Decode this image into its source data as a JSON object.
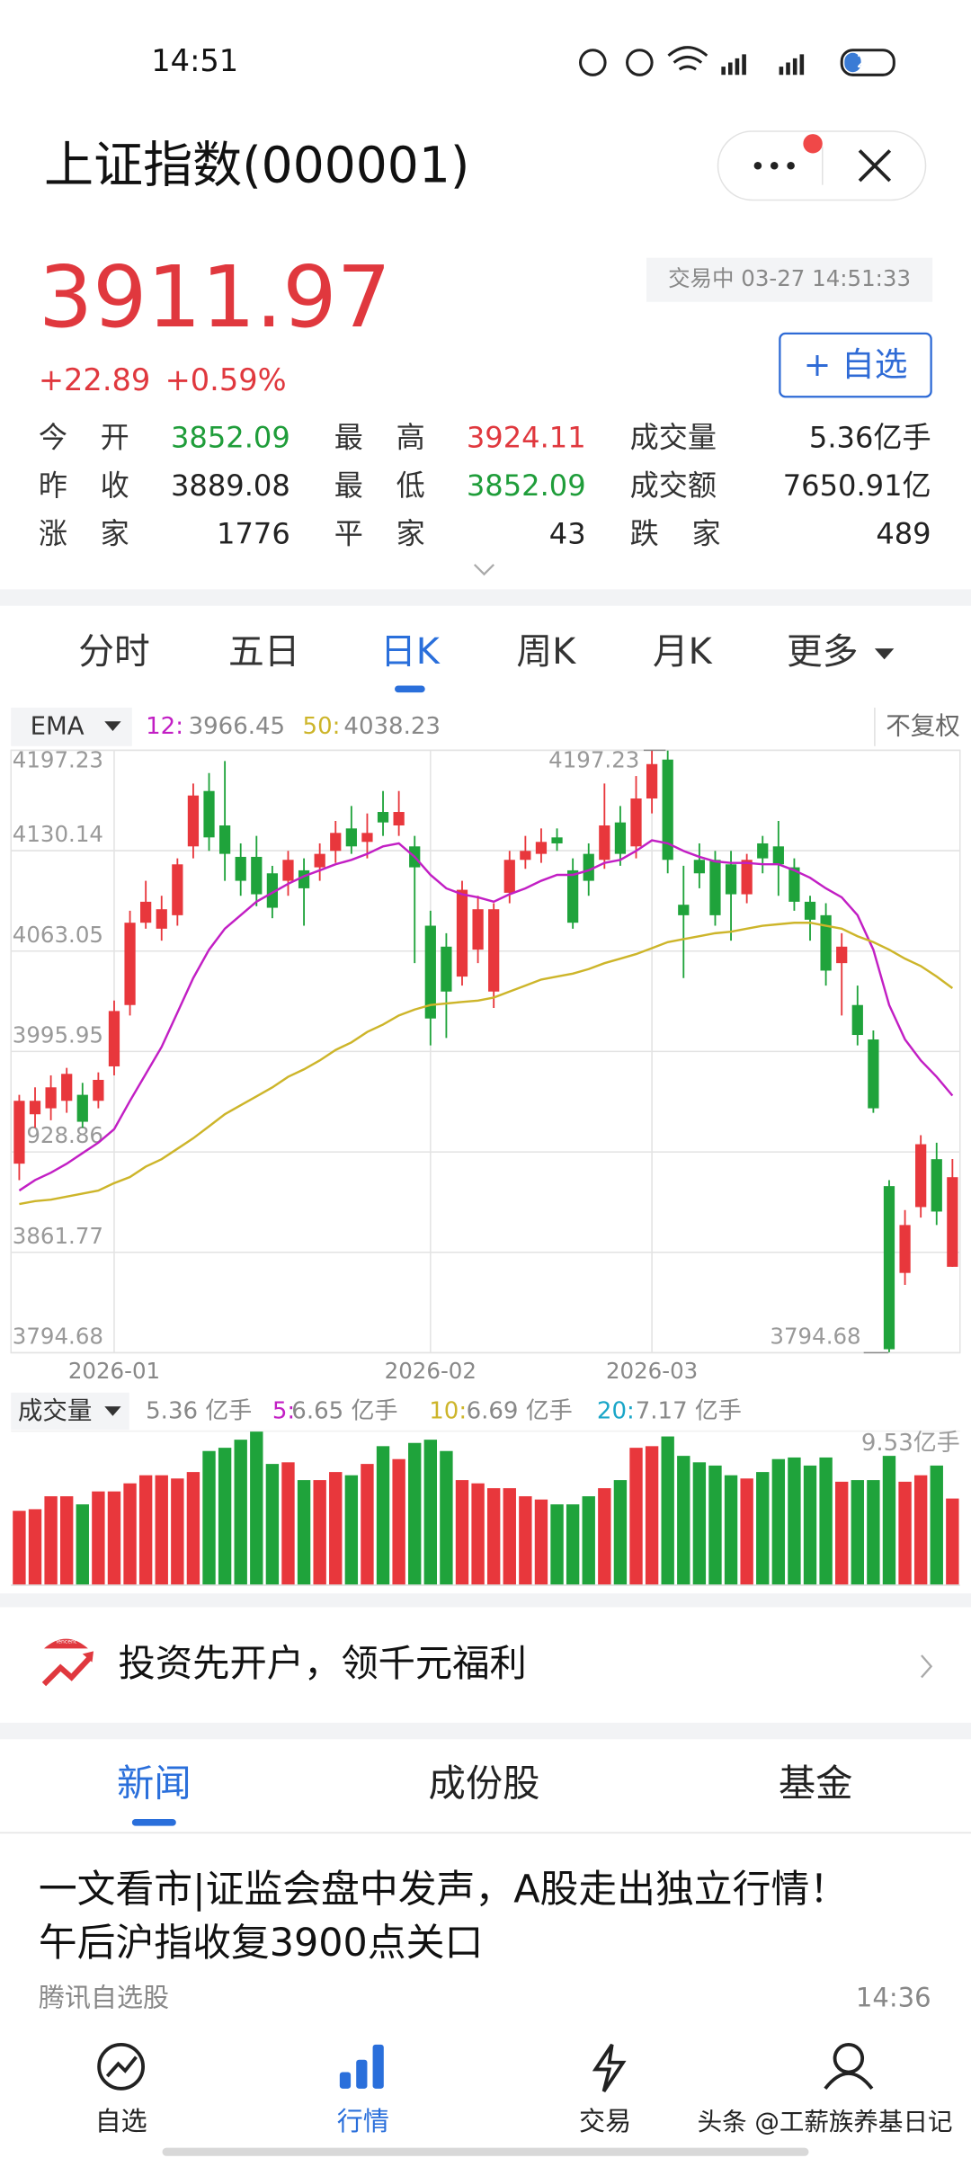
{
  "status_bar": {
    "time": "14:51",
    "battery": "27"
  },
  "header": {
    "title": "上证指数(000001)"
  },
  "quote": {
    "price": "3911.97",
    "change": "+22.89",
    "change_pct": "+0.59%",
    "trade_status": "交易中 03-27 14:51:33",
    "watch_button": "+ 自选",
    "stats": [
      [
        {
          "label": "今开",
          "value": "3852.09",
          "color": "#1f9d3a"
        },
        {
          "label": "最高",
          "value": "3924.11",
          "color": "#e0383e"
        },
        {
          "label": "成交量",
          "value": "5.36亿手",
          "color": "#222222"
        }
      ],
      [
        {
          "label": "昨收",
          "value": "3889.08",
          "color": "#222222"
        },
        {
          "label": "最低",
          "value": "3852.09",
          "color": "#1f9d3a"
        },
        {
          "label": "成交额",
          "value": "7650.91亿",
          "color": "#222222"
        }
      ],
      [
        {
          "label": "涨家",
          "value": "1776",
          "color": "#222222"
        },
        {
          "label": "平家",
          "value": "43",
          "color": "#222222"
        },
        {
          "label": "跌家",
          "value": "489",
          "color": "#222222"
        }
      ]
    ]
  },
  "period_tabs": {
    "items": [
      "分时",
      "五日",
      "日K",
      "周K",
      "月K",
      "更多"
    ],
    "active": 2
  },
  "chart_data": [
    {
      "type": "candlestick",
      "indicator": "EMA",
      "adjust": "不复权",
      "categories": [
        null,
        null,
        null,
        null,
        null,
        null,
        "2026-01",
        null,
        null,
        null,
        null,
        null,
        null,
        null,
        null,
        null,
        null,
        null,
        null,
        null,
        null,
        null,
        null,
        null,
        null,
        null,
        "2026-02",
        null,
        null,
        null,
        null,
        null,
        null,
        null,
        null,
        null,
        null,
        null,
        null,
        null,
        "2026-03",
        null,
        null,
        null,
        null,
        null,
        null,
        null,
        null,
        null,
        null,
        null,
        null,
        null,
        null,
        null,
        null,
        null,
        null,
        null
      ],
      "open": [
        3921,
        3954,
        3958,
        3963,
        3967,
        3963,
        3986,
        4027,
        4082,
        4078,
        4087,
        4133,
        4170,
        4147,
        4126,
        4126,
        4115,
        4110,
        4117,
        4119,
        4130,
        4145,
        4136,
        4156,
        4147,
        4133,
        4080,
        4066,
        4046,
        4064,
        4036,
        4102,
        4124,
        4128,
        4139,
        4117,
        4128,
        4124,
        4149,
        4133,
        4165,
        4191,
        4094,
        4124,
        4124,
        4121,
        4101,
        4135,
        4133,
        4119,
        4096,
        4087,
        4055,
        4027,
        4004,
        3906,
        3848,
        3892,
        3924,
        3852.09
      ],
      "high": [
        3967,
        3972,
        3980,
        3985,
        3975,
        3982,
        4030,
        4090,
        4110,
        4100,
        4125,
        4175,
        4182,
        4190,
        4135,
        4140,
        4120,
        4130,
        4125,
        4135,
        4150,
        4160,
        4155,
        4170,
        4170,
        4140,
        4090,
        4075,
        4110,
        4100,
        4095,
        4130,
        4140,
        4145,
        4145,
        4125,
        4135,
        4175,
        4160,
        4180,
        4197,
        4197,
        4120,
        4135,
        4130,
        4130,
        4128,
        4140,
        4150,
        4125,
        4100,
        4095,
        4075,
        4040,
        4010,
        3910,
        3890,
        3940,
        3935,
        3924.11
      ],
      "low": [
        3910,
        3945,
        3950,
        3955,
        3945,
        3958,
        3980,
        4020,
        4078,
        4070,
        4080,
        4125,
        4130,
        4110,
        4100,
        4093,
        4085,
        4100,
        4080,
        4110,
        4122,
        4128,
        4125,
        4140,
        4140,
        4055,
        4000,
        4005,
        4040,
        4055,
        4025,
        4095,
        4118,
        4122,
        4130,
        4078,
        4100,
        4118,
        4120,
        4125,
        4155,
        4115,
        4045,
        4105,
        4080,
        4070,
        4095,
        4115,
        4100,
        4090,
        4070,
        4040,
        4020,
        4000,
        3955,
        3795,
        3840,
        3885,
        3880,
        3852.09
      ],
      "close": [
        3963,
        3963,
        3972,
        3981,
        3949,
        3977,
        4023,
        4082,
        4096,
        4091,
        4121,
        4167,
        4139,
        4128,
        4110,
        4101,
        4092,
        4124,
        4105,
        4128,
        4142,
        4133,
        4142,
        4149,
        4156,
        4119,
        4018,
        4036,
        4104,
        4091,
        4091,
        4124,
        4130,
        4136,
        4135,
        4082,
        4110,
        4147,
        4128,
        4165,
        4188,
        4124,
        4087,
        4115,
        4087,
        4101,
        4124,
        4125,
        4121,
        4096,
        4084,
        4050,
        4066,
        4007,
        3958,
        3797,
        3880,
        3934,
        3889,
        3911.97
      ],
      "up_color": "#e8373c",
      "down_color": "#1fa33b",
      "series": [
        {
          "name": "12:",
          "color": "#c21fc4",
          "values": [
            3903,
            3910,
            3915,
            3921,
            3928,
            3935,
            3944,
            3963,
            3981,
            3999,
            4022,
            4045,
            4064,
            4078,
            4087,
            4096,
            4102,
            4108,
            4113,
            4117,
            4121,
            4124,
            4128,
            4133,
            4135,
            4126,
            4114,
            4105,
            4101,
            4099,
            4096,
            4101,
            4105,
            4110,
            4114,
            4114,
            4117,
            4122,
            4124,
            4130,
            4137,
            4135,
            4130,
            4126,
            4123,
            4122,
            4122,
            4121,
            4121,
            4117,
            4112,
            4105,
            4099,
            4087,
            4064,
            4027,
            4004,
            3990,
            3979,
            3966.45
          ]
        },
        {
          "name": "50:",
          "color": "#cdb52a",
          "values": [
            3894,
            3896,
            3897,
            3899,
            3901,
            3903,
            3908,
            3912,
            3919,
            3924,
            3931,
            3938,
            3946,
            3954,
            3960,
            3966,
            3972,
            3979,
            3984,
            3990,
            3997,
            4002,
            4009,
            4014,
            4020,
            4024,
            4027,
            4028,
            4029,
            4030,
            4032,
            4036,
            4040,
            4044,
            4046,
            4048,
            4051,
            4055,
            4058,
            4061,
            4065,
            4069,
            4071,
            4073,
            4075,
            4076,
            4078,
            4080,
            4081,
            4082,
            4082,
            4080,
            4078,
            4073,
            4069,
            4064,
            4058,
            4053,
            4046,
            4038.23
          ]
        }
      ],
      "ylim": [
        3794.68,
        4197.23
      ],
      "yticks": [
        4197.23,
        4130.14,
        4063.05,
        3995.95,
        3928.86,
        3861.77,
        3794.68
      ],
      "high_mark": 4197.23,
      "low_mark": 3794.68,
      "grid": true
    },
    {
      "type": "bar",
      "title": "成交量",
      "values": [
        4.6,
        4.7,
        5.5,
        5.5,
        5.0,
        5.8,
        5.8,
        6.3,
        6.8,
        6.8,
        6.6,
        7.0,
        8.3,
        8.5,
        9.0,
        9.5,
        7.5,
        7.6,
        6.5,
        6.5,
        7.0,
        6.8,
        7.5,
        8.6,
        7.8,
        8.8,
        9.0,
        8.3,
        6.5,
        6.3,
        6.0,
        6.0,
        5.5,
        5.3,
        5.0,
        5.0,
        5.5,
        6.0,
        6.5,
        8.5,
        8.6,
        9.2,
        8.0,
        7.6,
        7.4,
        6.8,
        6.6,
        7.0,
        7.8,
        7.9,
        7.4,
        7.9,
        6.4,
        6.5,
        6.5,
        8.0,
        6.4,
        6.8,
        7.4,
        5.36
      ],
      "ylim": [
        0,
        9.53
      ],
      "yticks": [
        {
          "value": 9.53,
          "label": "9.53亿手"
        }
      ],
      "current": "5.36 亿手",
      "averages": [
        {
          "name": "5:",
          "color": "#c21fc4",
          "label": "6.65 亿手"
        },
        {
          "name": "10:",
          "color": "#cdb52a",
          "label": "6.69 亿手"
        },
        {
          "name": "20:",
          "color": "#1aa6c8",
          "label": "7.17 亿手"
        }
      ]
    }
  ],
  "promo": {
    "logo": "Tencent",
    "text": "投资先开户，领千元福利"
  },
  "news_tabs": {
    "items": [
      "新闻",
      "成份股",
      "基金"
    ],
    "active": 0
  },
  "news": [
    {
      "title_lines": [
        "一文看市|证监会盘中发声，A股走出独立行情！",
        "午后沪指收复3900点关口"
      ],
      "source": "腾讯自选股",
      "time": "14:36"
    }
  ],
  "bottom_nav": {
    "items": [
      "自选",
      "行情",
      "交易"
    ],
    "active": 1
  },
  "watermark": "头条 @工薪族养基日记"
}
